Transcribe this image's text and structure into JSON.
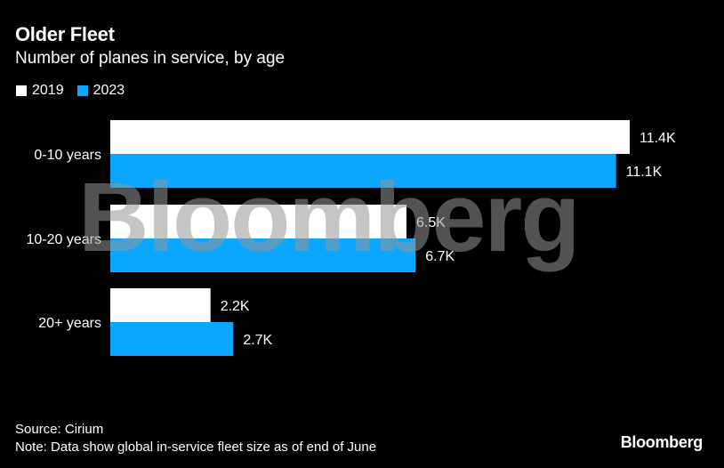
{
  "header": {
    "title": "Older Fleet",
    "subtitle": "Number of planes in service, by age"
  },
  "colors": {
    "background": "#000000",
    "series_2019": "#ffffff",
    "series_2023": "#0aa6ff",
    "watermark": "#969696"
  },
  "chart_data": {
    "type": "bar",
    "orientation": "horizontal",
    "categories": [
      "0-10 years",
      "10-20 years",
      "20+ years"
    ],
    "series": [
      {
        "name": "2019",
        "values": [
          11.4,
          6.5,
          2.2
        ],
        "labels": [
          "11.4K",
          "6.5K",
          "2.2K"
        ]
      },
      {
        "name": "2023",
        "values": [
          11.1,
          6.7,
          2.7
        ],
        "labels": [
          "11.1K",
          "6.7K",
          "2.7K"
        ]
      }
    ],
    "unit": "thousand planes",
    "xlim": [
      0,
      11.4
    ],
    "legend": "top-left",
    "grid": false
  },
  "footer": {
    "source": "Source: Cirium",
    "note": "Note: Data show global in-service fleet size as of end of June",
    "brand": "Bloomberg"
  },
  "watermark": "Bloomberg"
}
